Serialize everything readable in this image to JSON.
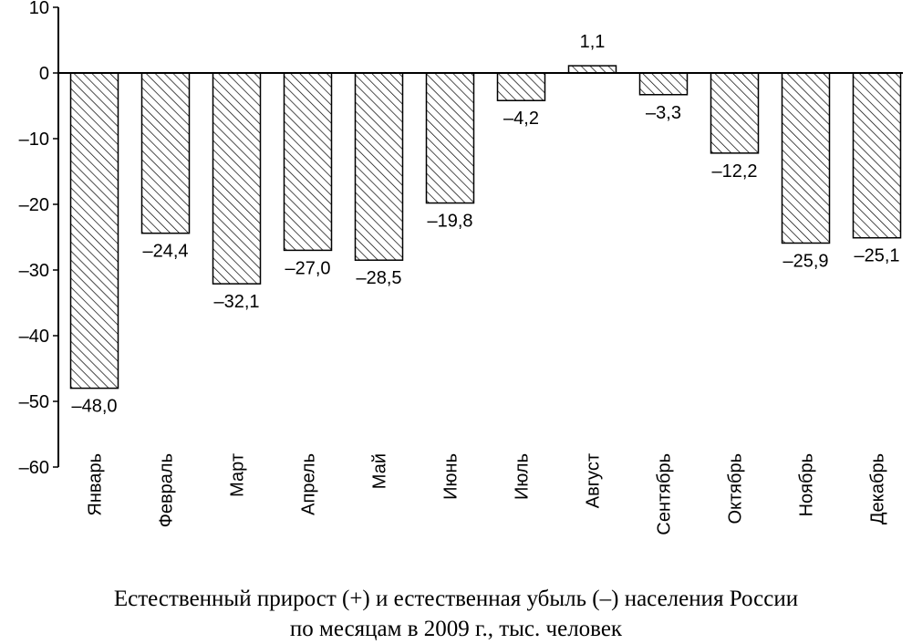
{
  "chart_data": {
    "type": "bar",
    "categories": [
      "Январь",
      "Февраль",
      "Март",
      "Апрель",
      "Май",
      "Июнь",
      "Июль",
      "Август",
      "Сентябрь",
      "Октябрь",
      "Ноябрь",
      "Декабрь"
    ],
    "values": [
      -48.0,
      -24.4,
      -32.1,
      -27.0,
      -28.5,
      -19.8,
      -4.2,
      1.1,
      -3.3,
      -12.2,
      -25.9,
      -25.1
    ],
    "value_labels": [
      "–48,0",
      "–24,4",
      "–32,1",
      "–27,0",
      "–28,5",
      "–19,8",
      "–4,2",
      "1,1",
      "–3,3",
      "–12,2",
      "–25,9",
      "–25,1"
    ],
    "ylim": [
      -60,
      10
    ],
    "yticks": [
      10,
      0,
      -10,
      -20,
      -30,
      -40,
      -50,
      -60
    ],
    "ytick_labels": [
      "10",
      "0",
      "–10",
      "–20",
      "–30",
      "–40",
      "–50",
      "–60"
    ],
    "bar_fill": "diagonal-hatch",
    "grid": false,
    "title": "",
    "xlabel": "",
    "ylabel": ""
  },
  "caption": {
    "line1": "Естественный прирост (+) и естественная убыль (–) населения России",
    "line2": "по месяцам в 2009 г., тыс. человек"
  }
}
